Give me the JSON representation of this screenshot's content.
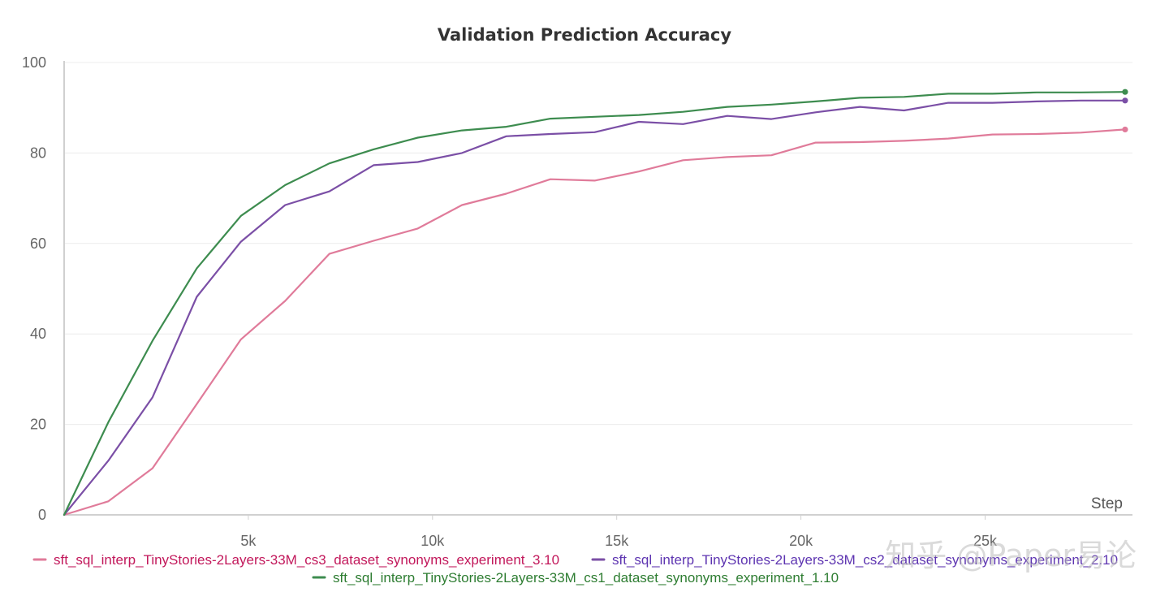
{
  "chart_data": {
    "type": "line",
    "title": "Validation Prediction Accuracy",
    "xlabel": "Step",
    "ylabel": "",
    "xlim": [
      0,
      29000
    ],
    "ylim": [
      0,
      100
    ],
    "x_ticks": [
      {
        "value": 5000,
        "label": "5k"
      },
      {
        "value": 10000,
        "label": "10k"
      },
      {
        "value": 15000,
        "label": "15k"
      },
      {
        "value": 20000,
        "label": "20k"
      },
      {
        "value": 25000,
        "label": "25k"
      }
    ],
    "y_ticks": [
      0,
      20,
      40,
      60,
      80,
      100
    ],
    "grid": true,
    "legend_position": "bottom",
    "x": [
      0,
      1200,
      2400,
      3600,
      4800,
      6000,
      7200,
      8400,
      9600,
      10800,
      12000,
      13200,
      14400,
      15600,
      16800,
      18000,
      19200,
      20400,
      21600,
      22800,
      24000,
      25200,
      26400,
      27600,
      28800
    ],
    "series": [
      {
        "name": "sft_sql_interp_TinyStories-2Layers-33M_cs3_dataset_synonyms_experiment_3.10",
        "color": "#e07b9a",
        "text_color": "#c2185b",
        "values": [
          0,
          3,
          10.3,
          24.5,
          38.8,
          47.3,
          57.7,
          60.6,
          63.3,
          68.5,
          71,
          74.2,
          73.9,
          75.9,
          78.4,
          79.1,
          79.5,
          82.3,
          82.4,
          82.7,
          83.2,
          84.1,
          84.2,
          84.5,
          85.2
        ]
      },
      {
        "name": "sft_sql_interp_TinyStories-2Layers-33M_cs2_dataset_synonyms_experiment_2.10",
        "color": "#7b4fa6",
        "text_color": "#5e35b1",
        "values": [
          0,
          12,
          26,
          48.2,
          60.4,
          68.5,
          71.5,
          77.3,
          78,
          80,
          83.7,
          84.2,
          84.6,
          86.9,
          86.4,
          88.2,
          87.5,
          89,
          90.2,
          89.4,
          91.1,
          91.1,
          91.4,
          91.6,
          91.6
        ]
      },
      {
        "name": "sft_sql_interp_TinyStories-2Layers-33M_cs1_dataset_synonyms_experiment_1.10",
        "color": "#3d8c4f",
        "text_color": "#2e7d32",
        "values": [
          0,
          20.5,
          38.5,
          54.5,
          66.1,
          72.9,
          77.7,
          80.8,
          83.4,
          85,
          85.8,
          87.6,
          88,
          88.4,
          89.1,
          90.2,
          90.7,
          91.4,
          92.2,
          92.4,
          93.1,
          93.1,
          93.4,
          93.4,
          93.5
        ]
      }
    ]
  },
  "watermark": "知乎 @Paper易论"
}
